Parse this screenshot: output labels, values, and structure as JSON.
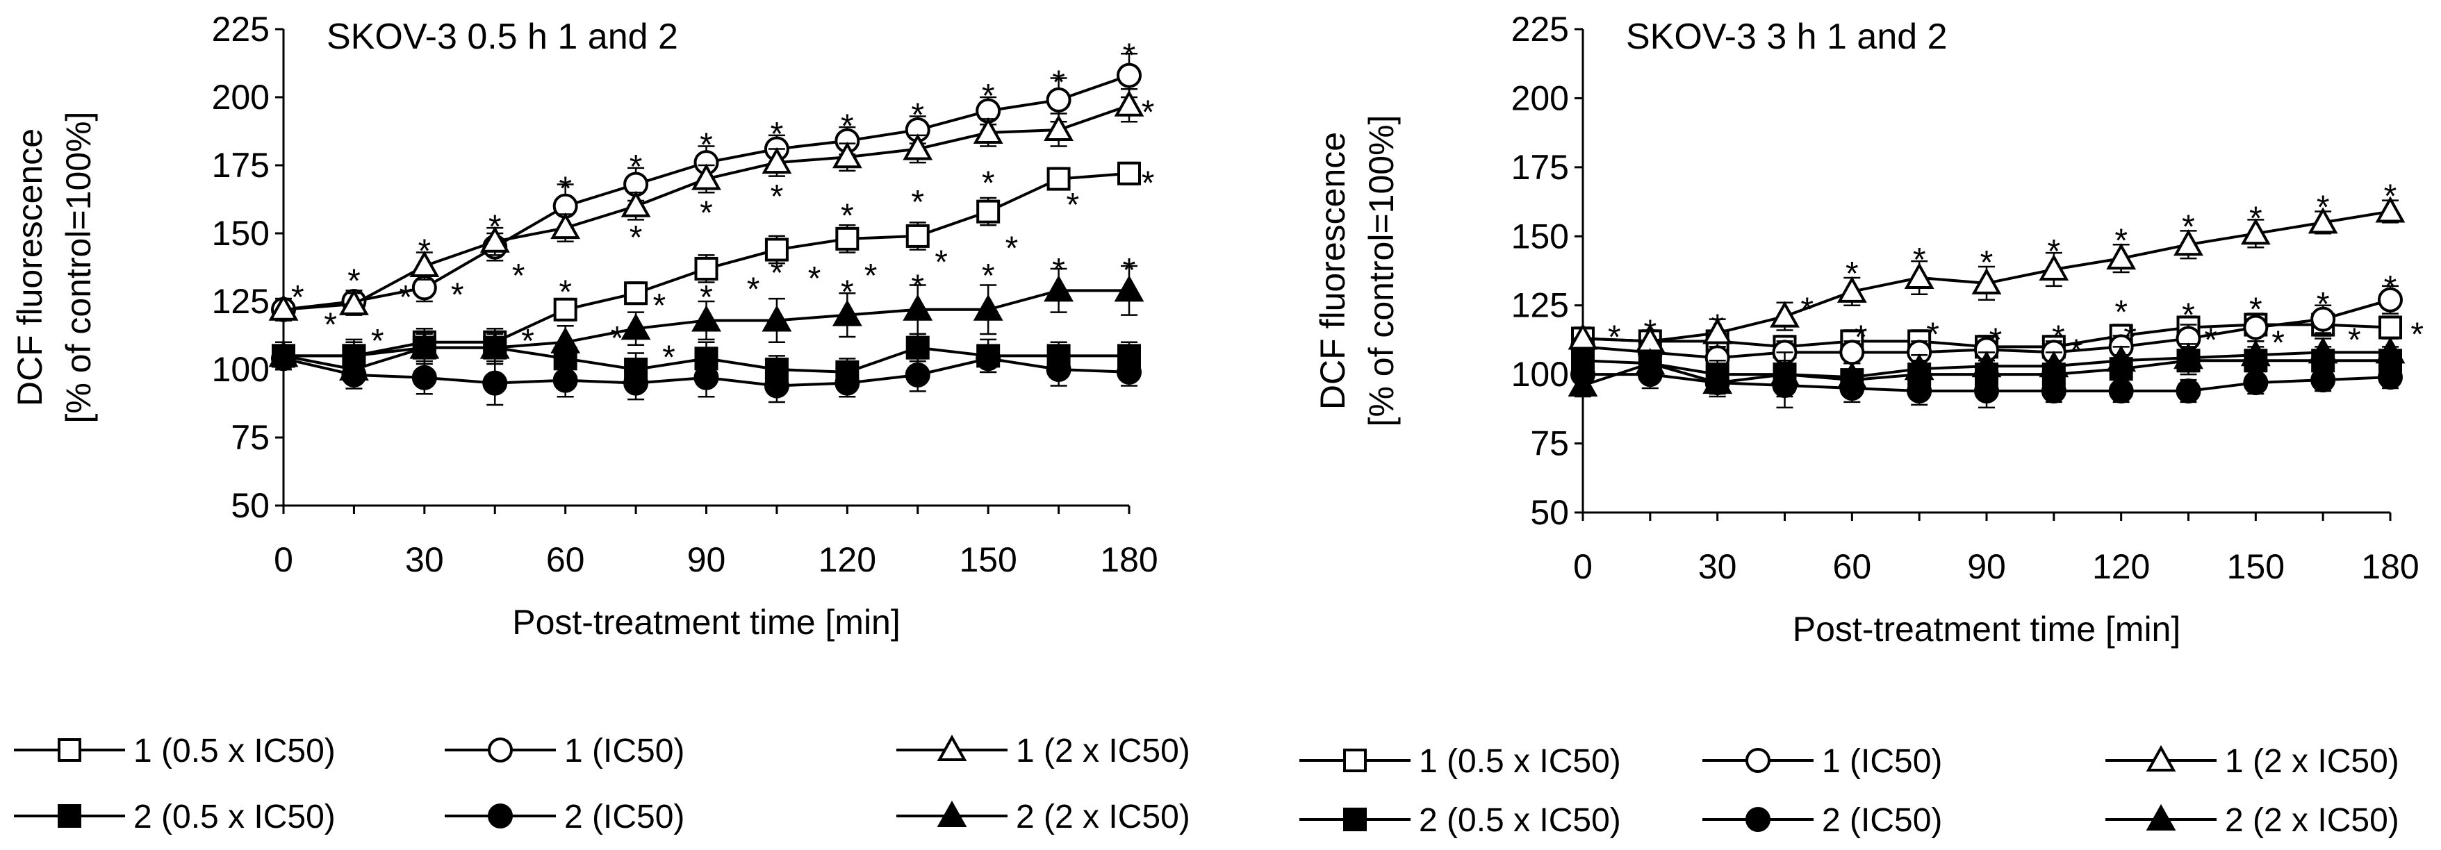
{
  "chart_data": [
    {
      "type": "line",
      "title": "SKOV-3   0.5 h  1 and 2",
      "xlabel": "Post-treatment time [min]",
      "ylabel_line1": "DCF fluorescence",
      "ylabel_line2": "[% of control=100%]",
      "x": [
        0,
        15,
        30,
        45,
        60,
        75,
        90,
        105,
        120,
        135,
        150,
        165,
        180
      ],
      "xticks": [
        0,
        30,
        60,
        90,
        120,
        150,
        180
      ],
      "yticks": [
        50,
        75,
        100,
        125,
        150,
        175,
        200,
        225
      ],
      "xlim": [
        0,
        180
      ],
      "ylim": [
        50,
        225
      ],
      "series": [
        {
          "name": "1 (0.5 x IC50)",
          "marker": "square",
          "fill": "open",
          "values": [
            105,
            105,
            110,
            110,
            122,
            128,
            137,
            144,
            148,
            149,
            158,
            170,
            172
          ],
          "errors": [
            3,
            5,
            5,
            5,
            4,
            4,
            5,
            5,
            5,
            5,
            5,
            4,
            4
          ]
        },
        {
          "name": "1 (IC50)",
          "marker": "circle",
          "fill": "open",
          "values": [
            122,
            125,
            130,
            145,
            160,
            168,
            176,
            181,
            184,
            188,
            195,
            199,
            208
          ],
          "errors": [
            4,
            4,
            5,
            5,
            8,
            6,
            6,
            5,
            5,
            5,
            5,
            8,
            8
          ]
        },
        {
          "name": "1 (2 x IC50)",
          "marker": "triangle",
          "fill": "open",
          "values": [
            122,
            124,
            138,
            147,
            152,
            160,
            170,
            176,
            178,
            181,
            187,
            188,
            197
          ],
          "errors": [
            4,
            4,
            5,
            5,
            5,
            5,
            5,
            5,
            5,
            5,
            5,
            6,
            6
          ]
        },
        {
          "name": "2 (0.5 x IC50)",
          "marker": "square",
          "fill": "filled",
          "values": [
            105,
            105,
            108,
            108,
            104,
            100,
            104,
            100,
            99,
            108,
            105,
            105,
            105
          ],
          "errors": [
            5,
            6,
            6,
            6,
            6,
            6,
            6,
            5,
            5,
            5,
            6,
            5,
            5
          ]
        },
        {
          "name": "2 (IC50)",
          "marker": "circle",
          "fill": "filled",
          "values": [
            104,
            98,
            97,
            95,
            96,
            95,
            97,
            94,
            95,
            98,
            104,
            100,
            99
          ],
          "errors": [
            4,
            5,
            6,
            8,
            6,
            6,
            7,
            6,
            5,
            6,
            5,
            6,
            5
          ]
        },
        {
          "name": "2 (2 x IC50)",
          "marker": "triangle",
          "fill": "filled",
          "values": [
            105,
            100,
            108,
            108,
            110,
            115,
            118,
            118,
            120,
            122,
            122,
            129,
            129
          ],
          "errors": [
            4,
            5,
            5,
            5,
            6,
            6,
            7,
            8,
            8,
            9,
            9,
            8,
            9
          ]
        }
      ],
      "annotations": [
        {
          "text": "*",
          "x": 3,
          "y": 128
        },
        {
          "text": "*",
          "x": 15,
          "y": 134
        },
        {
          "text": "*",
          "x": 30,
          "y": 145
        },
        {
          "text": "*",
          "x": 45,
          "y": 154
        },
        {
          "text": "*",
          "x": 60,
          "y": 168
        },
        {
          "text": "*",
          "x": 75,
          "y": 176
        },
        {
          "text": "*",
          "x": 90,
          "y": 184
        },
        {
          "text": "*",
          "x": 105,
          "y": 188
        },
        {
          "text": "*",
          "x": 120,
          "y": 191
        },
        {
          "text": "*",
          "x": 135,
          "y": 195
        },
        {
          "text": "*",
          "x": 150,
          "y": 202
        },
        {
          "text": "*",
          "x": 165,
          "y": 207
        },
        {
          "text": "*",
          "x": 180,
          "y": 217
        },
        {
          "text": "*",
          "x": 184,
          "y": 196
        },
        {
          "text": "*",
          "x": 184,
          "y": 170
        },
        {
          "text": "*",
          "x": 10,
          "y": 118
        },
        {
          "text": "*",
          "x": 20,
          "y": 112
        },
        {
          "text": "*",
          "x": 26,
          "y": 128
        },
        {
          "text": "*",
          "x": 37,
          "y": 129
        },
        {
          "text": "*",
          "x": 50,
          "y": 136
        },
        {
          "text": "*",
          "x": 52,
          "y": 112
        },
        {
          "text": "*",
          "x": 60,
          "y": 130
        },
        {
          "text": "*",
          "x": 71,
          "y": 113
        },
        {
          "text": "*",
          "x": 75,
          "y": 150
        },
        {
          "text": "*",
          "x": 80,
          "y": 125
        },
        {
          "text": "*",
          "x": 82,
          "y": 106
        },
        {
          "text": "*",
          "x": 90,
          "y": 159
        },
        {
          "text": "*",
          "x": 90,
          "y": 128
        },
        {
          "text": "*",
          "x": 100,
          "y": 131
        },
        {
          "text": "*",
          "x": 105,
          "y": 165
        },
        {
          "text": "*",
          "x": 105,
          "y": 137
        },
        {
          "text": "*",
          "x": 113,
          "y": 135
        },
        {
          "text": "*",
          "x": 120,
          "y": 158
        },
        {
          "text": "*",
          "x": 120,
          "y": 130
        },
        {
          "text": "*",
          "x": 125,
          "y": 136
        },
        {
          "text": "*",
          "x": 135,
          "y": 163
        },
        {
          "text": "*",
          "x": 135,
          "y": 132
        },
        {
          "text": "*",
          "x": 140,
          "y": 141
        },
        {
          "text": "*",
          "x": 150,
          "y": 170
        },
        {
          "text": "*",
          "x": 150,
          "y": 136
        },
        {
          "text": "*",
          "x": 155,
          "y": 146
        },
        {
          "text": "*",
          "x": 165,
          "y": 138
        },
        {
          "text": "*",
          "x": 168,
          "y": 162
        },
        {
          "text": "*",
          "x": 180,
          "y": 138
        }
      ]
    },
    {
      "type": "line",
      "title": "SKOV-3   3 h  1 and 2",
      "xlabel": "Post-treatment time [min]",
      "ylabel_line1": "DCF fluorescence",
      "ylabel_line2": "[% of control=100%]",
      "x": [
        0,
        15,
        30,
        45,
        60,
        75,
        90,
        105,
        120,
        135,
        150,
        165,
        180
      ],
      "xticks": [
        0,
        30,
        60,
        90,
        120,
        150,
        180
      ],
      "yticks": [
        50,
        75,
        100,
        125,
        150,
        175,
        200,
        225
      ],
      "xlim": [
        0,
        180
      ],
      "ylim": [
        50,
        225
      ],
      "series": [
        {
          "name": "1 (0.5 x IC50)",
          "marker": "square",
          "fill": "open",
          "values": [
            113,
            112,
            112,
            110,
            112,
            112,
            110,
            110,
            114,
            117,
            118,
            118,
            117
          ],
          "errors": [
            3,
            3,
            3,
            4,
            4,
            4,
            4,
            4,
            4,
            4,
            4,
            4,
            4
          ]
        },
        {
          "name": "1 (IC50)",
          "marker": "circle",
          "fill": "open",
          "values": [
            110,
            108,
            106,
            108,
            108,
            108,
            109,
            108,
            110,
            113,
            117,
            120,
            127
          ],
          "errors": [
            3,
            3,
            4,
            4,
            4,
            4,
            5,
            4,
            4,
            5,
            5,
            5,
            5
          ]
        },
        {
          "name": "1 (2 x IC50)",
          "marker": "triangle",
          "fill": "open",
          "values": [
            113,
            112,
            115,
            121,
            130,
            135,
            133,
            138,
            142,
            147,
            151,
            155,
            159
          ],
          "errors": [
            4,
            4,
            5,
            5,
            5,
            6,
            6,
            6,
            5,
            5,
            5,
            4,
            4
          ]
        },
        {
          "name": "2 (0.5 x IC50)",
          "marker": "square",
          "fill": "filled",
          "values": [
            105,
            104,
            100,
            100,
            98,
            100,
            100,
            100,
            102,
            105,
            105,
            105,
            105
          ],
          "errors": [
            4,
            4,
            5,
            8,
            6,
            5,
            5,
            5,
            5,
            5,
            5,
            5,
            5
          ]
        },
        {
          "name": "2 (IC50)",
          "marker": "circle",
          "fill": "filled",
          "values": [
            100,
            100,
            97,
            96,
            95,
            94,
            94,
            94,
            94,
            94,
            97,
            98,
            99
          ],
          "errors": [
            4,
            5,
            5,
            8,
            5,
            5,
            6,
            4,
            4,
            4,
            4,
            4,
            4
          ]
        },
        {
          "name": "2 (2 x IC50)",
          "marker": "triangle",
          "fill": "filled",
          "values": [
            96,
            104,
            97,
            100,
            99,
            102,
            103,
            103,
            105,
            106,
            107,
            108,
            108
          ],
          "errors": [
            4,
            4,
            4,
            5,
            5,
            5,
            5,
            5,
            5,
            5,
            5,
            5,
            5
          ]
        }
      ],
      "annotations": [
        {
          "text": "*",
          "x": 7,
          "y": 115
        },
        {
          "text": "*",
          "x": 15,
          "y": 117
        },
        {
          "text": "*",
          "x": 30,
          "y": 119
        },
        {
          "text": "*",
          "x": 50,
          "y": 125
        },
        {
          "text": "*",
          "x": 60,
          "y": 138
        },
        {
          "text": "*",
          "x": 75,
          "y": 143
        },
        {
          "text": "*",
          "x": 90,
          "y": 142
        },
        {
          "text": "*",
          "x": 105,
          "y": 146
        },
        {
          "text": "*",
          "x": 120,
          "y": 150
        },
        {
          "text": "*",
          "x": 135,
          "y": 155
        },
        {
          "text": "*",
          "x": 150,
          "y": 158
        },
        {
          "text": "*",
          "x": 165,
          "y": 162
        },
        {
          "text": "*",
          "x": 180,
          "y": 166
        },
        {
          "text": "*",
          "x": 180,
          "y": 133
        },
        {
          "text": "*",
          "x": 186,
          "y": 116
        },
        {
          "text": "*",
          "x": 62,
          "y": 115
        },
        {
          "text": "*",
          "x": 78,
          "y": 116
        },
        {
          "text": "*",
          "x": 92,
          "y": 114
        },
        {
          "text": "*",
          "x": 106,
          "y": 115
        },
        {
          "text": "*",
          "x": 110,
          "y": 110
        },
        {
          "text": "*",
          "x": 120,
          "y": 124
        },
        {
          "text": "*",
          "x": 122,
          "y": 115
        },
        {
          "text": "*",
          "x": 135,
          "y": 123
        },
        {
          "text": "*",
          "x": 140,
          "y": 114
        },
        {
          "text": "*",
          "x": 150,
          "y": 125
        },
        {
          "text": "*",
          "x": 155,
          "y": 113
        },
        {
          "text": "*",
          "x": 165,
          "y": 127
        },
        {
          "text": "*",
          "x": 172,
          "y": 114
        }
      ]
    }
  ],
  "legends": [
    {
      "items": [
        "1 (0.5 x IC50)",
        "1 (IC50)",
        "1 (2 x IC50)",
        "2 (0.5 x IC50)",
        "2 (IC50)",
        "2 (2 x IC50)"
      ]
    },
    {
      "items": [
        "1 (0.5 x IC50)",
        "1 (IC50)",
        "1 (2 x IC50)",
        "2 (0.5 x IC50)",
        "2 (IC50)",
        "2 (2 x IC50)"
      ]
    }
  ]
}
